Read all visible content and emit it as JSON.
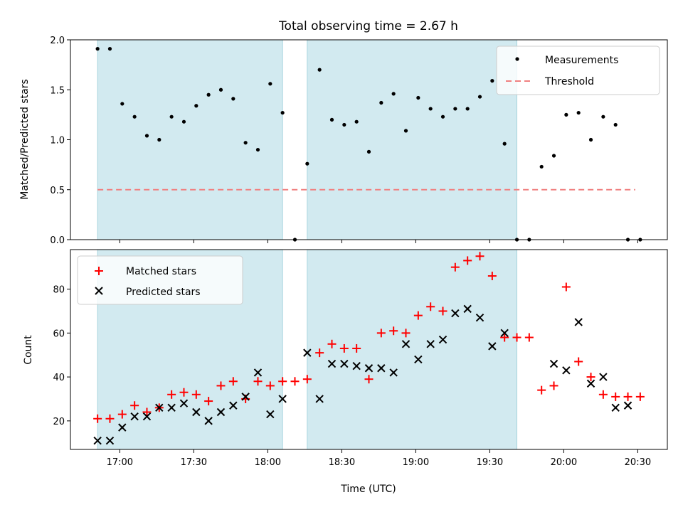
{
  "title": "Total observing time = 2.67 h",
  "xlabel": "Time (UTC)",
  "x_tick_labels": [
    "17:00",
    "17:30",
    "18:00",
    "18:30",
    "19:00",
    "19:30",
    "20:00",
    "20:30"
  ],
  "x_tick_minutes": [
    1020,
    1050,
    1080,
    1110,
    1140,
    1170,
    1200,
    1230
  ],
  "xlim_minutes": [
    1000,
    1242
  ],
  "colors": {
    "shade": "#d2eaf0",
    "threshold": "#f08080",
    "matched": "#ff0000",
    "predicted": "#000000",
    "measurement": "#000000"
  },
  "chart_data": [
    {
      "type": "scatter",
      "ylabel": "Matched/Predicted stars",
      "ylim": [
        0,
        2.0
      ],
      "y_ticks": [
        "0.0",
        "0.5",
        "1.0",
        "1.5",
        "2.0"
      ],
      "y_tick_values": [
        0,
        0.5,
        1.0,
        1.5,
        2.0
      ],
      "legend": {
        "placement": "upper-right",
        "entries": [
          "Measurements",
          "Threshold"
        ]
      },
      "shaded_intervals_minutes": [
        [
          1011,
          1086
        ],
        [
          1096,
          1181
        ]
      ],
      "threshold": {
        "y": 0.5,
        "x_range_minutes": [
          1011,
          1229
        ]
      },
      "series": [
        {
          "name": "Measurements",
          "x_minutes": [
            1011,
            1016,
            1021,
            1026,
            1031,
            1036,
            1041,
            1046,
            1051,
            1056,
            1061,
            1066,
            1071,
            1076,
            1081,
            1086,
            1091,
            1096,
            1101,
            1106,
            1111,
            1116,
            1121,
            1126,
            1131,
            1136,
            1141,
            1146,
            1151,
            1156,
            1161,
            1166,
            1171,
            1176,
            1181,
            1186,
            1191,
            1196,
            1201,
            1206,
            1211,
            1216,
            1221,
            1226,
            1231
          ],
          "y": [
            1.91,
            1.91,
            1.36,
            1.23,
            1.04,
            1.0,
            1.23,
            1.18,
            1.34,
            1.45,
            1.5,
            1.41,
            0.97,
            0.9,
            1.56,
            1.27,
            0.0,
            0.76,
            1.7,
            1.2,
            1.15,
            1.18,
            0.88,
            1.37,
            1.46,
            1.09,
            1.42,
            1.31,
            1.23,
            1.31,
            1.31,
            1.43,
            1.59,
            0.96,
            0.0,
            0.0,
            0.73,
            0.84,
            1.25,
            1.27,
            1.0,
            1.23,
            1.15,
            0.0,
            0.0
          ]
        }
      ]
    },
    {
      "type": "scatter",
      "ylabel": "Count",
      "ylim": [
        7,
        98
      ],
      "y_ticks": [
        "20",
        "40",
        "60",
        "80"
      ],
      "y_tick_values": [
        20,
        40,
        60,
        80
      ],
      "legend": {
        "placement": "upper-left",
        "entries": [
          "Matched stars",
          "Predicted stars"
        ]
      },
      "shaded_intervals_minutes": [
        [
          1011,
          1086
        ],
        [
          1096,
          1181
        ]
      ],
      "series": [
        {
          "name": "Matched stars",
          "marker": "plus",
          "x_minutes": [
            1011,
            1016,
            1021,
            1026,
            1031,
            1036,
            1041,
            1046,
            1051,
            1056,
            1061,
            1066,
            1071,
            1076,
            1081,
            1086,
            1091,
            1096,
            1101,
            1106,
            1111,
            1116,
            1121,
            1126,
            1131,
            1136,
            1141,
            1146,
            1151,
            1156,
            1161,
            1166,
            1171,
            1176,
            1181,
            1186,
            1191,
            1196,
            1201,
            1206,
            1211,
            1216,
            1221,
            1226,
            1231
          ],
          "y": [
            21,
            21,
            23,
            27,
            24,
            26,
            32,
            33,
            32,
            29,
            36,
            38,
            30,
            38,
            36,
            38,
            38,
            39,
            51,
            55,
            53,
            53,
            39,
            60,
            61,
            60,
            68,
            72,
            70,
            90,
            93,
            95,
            86,
            58,
            58,
            58,
            34,
            36,
            81,
            47,
            40,
            32,
            31,
            31,
            31
          ]
        },
        {
          "name": "Predicted stars",
          "marker": "x",
          "x_minutes": [
            1011,
            1016,
            1021,
            1026,
            1031,
            1036,
            1041,
            1046,
            1051,
            1056,
            1061,
            1066,
            1071,
            1076,
            1081,
            1086,
            1096,
            1101,
            1106,
            1111,
            1116,
            1121,
            1126,
            1131,
            1136,
            1141,
            1146,
            1151,
            1156,
            1161,
            1166,
            1171,
            1176,
            1196,
            1201,
            1206,
            1211,
            1216,
            1221,
            1226
          ],
          "y": [
            11,
            11,
            17,
            22,
            22,
            26,
            26,
            28,
            24,
            20,
            24,
            27,
            31,
            42,
            23,
            30,
            51,
            30,
            46,
            46,
            45,
            44,
            44,
            42,
            55,
            48,
            55,
            57,
            69,
            71,
            67,
            54,
            60,
            46,
            43,
            65,
            37,
            40,
            26,
            27
          ]
        }
      ]
    }
  ]
}
